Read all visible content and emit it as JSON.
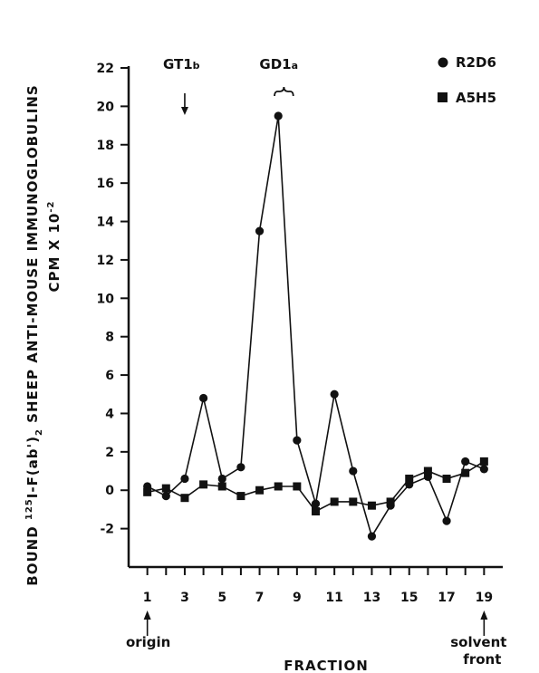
{
  "chart_data": {
    "type": "line",
    "xlabel": "FRACTION",
    "ylabel": "BOUND 125I-F(ab')2 SHEEP ANTI-MOUSE IMMUNOGLOBULINS",
    "ylabel_line2": "CPM X 10-2",
    "ylabel_parts": {
      "prefix": "BOUND ",
      "sup": "125",
      "mid": "I-F(ab')",
      "sub": "2",
      "rest": " SHEEP ANTI-MOUSE IMMUNOGLOBULINS",
      "unit": "CPM X 10",
      "unit_sup": "-2"
    },
    "xlim": [
      0,
      20
    ],
    "ylim": [
      -4,
      22
    ],
    "x_ticks": [
      1,
      3,
      5,
      7,
      9,
      11,
      13,
      15,
      17,
      19
    ],
    "y_ticks": [
      -2,
      0,
      2,
      4,
      6,
      8,
      10,
      12,
      14,
      16,
      18,
      20,
      22
    ],
    "series": [
      {
        "name": "R2D6",
        "marker": "circle",
        "x": [
          1,
          2,
          3,
          4,
          5,
          6,
          7,
          8,
          9,
          10,
          11,
          12,
          13,
          14,
          15,
          16,
          17,
          18,
          19
        ],
        "values": [
          0.2,
          -0.3,
          0.6,
          4.8,
          0.6,
          1.2,
          13.5,
          19.5,
          2.6,
          -0.7,
          5.0,
          1.0,
          -2.4,
          -0.8,
          0.3,
          0.7,
          -1.6,
          1.5,
          1.1
        ]
      },
      {
        "name": "A5H5",
        "marker": "square",
        "x": [
          1,
          2,
          3,
          4,
          5,
          6,
          7,
          8,
          9,
          10,
          11,
          12,
          13,
          14,
          15,
          16,
          17,
          18,
          19
        ],
        "values": [
          -0.1,
          0.1,
          -0.4,
          0.3,
          0.2,
          -0.3,
          0.0,
          0.2,
          0.2,
          -1.1,
          -0.6,
          -0.6,
          -0.8,
          -0.6,
          0.6,
          1.0,
          0.6,
          0.9,
          1.5
        ]
      }
    ],
    "annotations": [
      {
        "id": "gt1b",
        "main": "GT1",
        "sub": "b",
        "x": 3,
        "marker": "arrow-down"
      },
      {
        "id": "gd1a",
        "main": "GD1",
        "sub": "a",
        "x_range": [
          7.8,
          8.8
        ],
        "marker": "brace"
      },
      {
        "id": "origin",
        "text": "origin",
        "x": 1,
        "marker": "arrow-up"
      },
      {
        "id": "solvent",
        "text": "solvent",
        "text2": "front",
        "x": 19,
        "marker": "arrow-up"
      }
    ],
    "legend_position": "top-right",
    "grid": false
  }
}
